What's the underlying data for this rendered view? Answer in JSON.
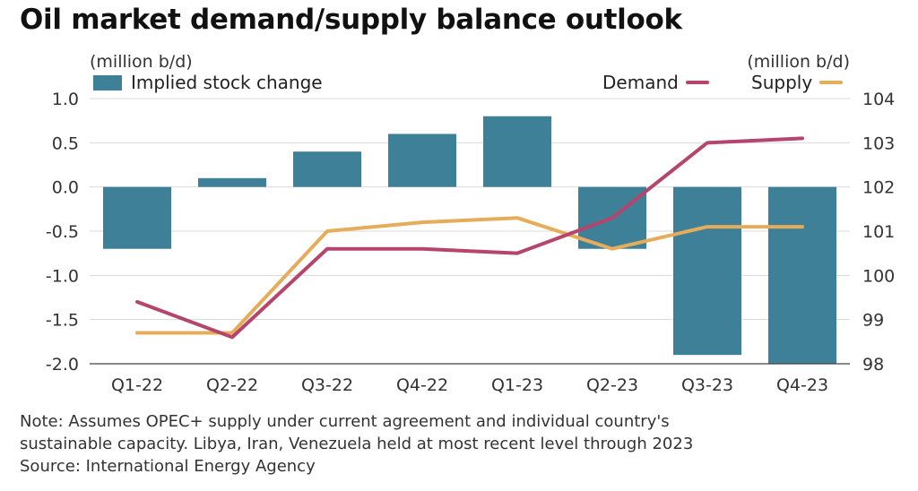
{
  "title": "Oil market demand/supply balance outlook",
  "left_unit": "(million b/d)",
  "right_unit": "(million b/d)",
  "legend": {
    "bars": "Implied stock change",
    "demand": "Demand",
    "supply": "Supply"
  },
  "colors": {
    "bars": "#3f8099",
    "demand": "#b5456c",
    "supply": "#e5ac5a",
    "grid": "#d9d9d9"
  },
  "notes": [
    "Note: Assumes OPEC+ supply under current agreement and individual country's",
    "sustainable capacity. Libya, Iran, Venezuela held at most recent level through 2023",
    "Source: International Energy Agency"
  ],
  "chart_data": {
    "type": "bar",
    "title": "Oil market demand/supply balance outlook",
    "categories": [
      "Q1-22",
      "Q2-22",
      "Q3-22",
      "Q4-22",
      "Q1-23",
      "Q2-23",
      "Q3-23",
      "Q4-23"
    ],
    "series": [
      {
        "name": "Implied stock change",
        "type": "bar",
        "axis": "left",
        "values": [
          -0.7,
          0.1,
          0.4,
          0.6,
          0.8,
          -0.7,
          -1.9,
          -2.0
        ]
      },
      {
        "name": "Demand",
        "type": "line",
        "axis": "right",
        "values": [
          99.4,
          98.6,
          100.6,
          100.6,
          100.5,
          101.3,
          103.0,
          103.1
        ]
      },
      {
        "name": "Supply",
        "type": "line",
        "axis": "right",
        "values": [
          98.7,
          98.7,
          101.0,
          101.2,
          101.3,
          100.6,
          101.1,
          101.1
        ]
      }
    ],
    "ylim_left": [
      -2.0,
      1.0
    ],
    "yticks_left": [
      "1.0",
      "0.5",
      "0.0",
      "-0.5",
      "-1.0",
      "-1.5",
      "-2.0"
    ],
    "ylim_right": [
      98,
      104
    ],
    "yticks_right": [
      "104",
      "103",
      "102",
      "101",
      "100",
      "99",
      "98"
    ],
    "grid": true,
    "legend_position": "top"
  }
}
